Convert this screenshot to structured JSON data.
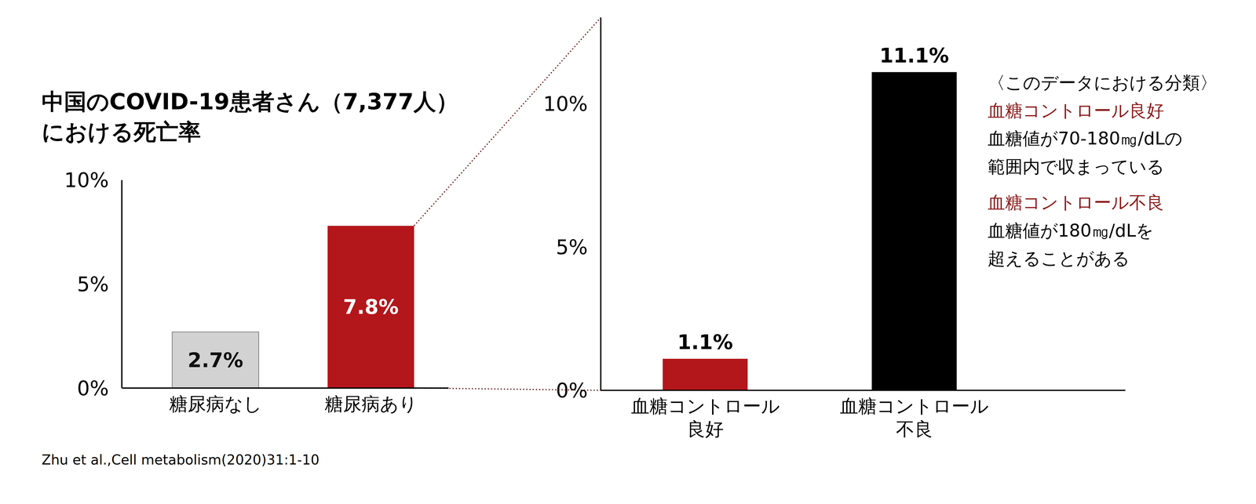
{
  "chart_data": [
    {
      "type": "bar",
      "title": "中国のCOVID-19患者さん（7,377人）\nにおける死亡率",
      "categories": [
        "糖尿病なし",
        "糖尿病あり"
      ],
      "values": [
        2.7,
        7.8
      ],
      "value_labels": [
        "2.7%",
        "7.8%"
      ],
      "colors": [
        "#d2d2d2",
        "#b3161b"
      ],
      "ylim": [
        0,
        10
      ],
      "yticks": [
        {
          "value": 0,
          "label": "0%"
        },
        {
          "value": 5,
          "label": "5%"
        },
        {
          "value": 10,
          "label": "10%"
        }
      ],
      "grid": false,
      "data_labels": true,
      "annotations": [
        "Zhu et al.,Cell metabolism(2020)31:1-10"
      ]
    },
    {
      "type": "bar",
      "categories": [
        "血糖コントロール\n良好",
        "血糖コントロール\n不良"
      ],
      "values": [
        1.1,
        11.1
      ],
      "value_labels": [
        "1.1%",
        "11.1%"
      ],
      "colors": [
        "#b3161b",
        "#000000"
      ],
      "ylim": [
        0,
        13
      ],
      "yticks": [
        {
          "value": 0,
          "label": "0%"
        },
        {
          "value": 5,
          "label": "5%"
        },
        {
          "value": 10,
          "label": "10%"
        }
      ],
      "grid": false,
      "data_labels": true,
      "annotations": [
        "〈このデータにおける分類〉",
        "血糖コントロール良好",
        "血糖値が70-180㎎/dLの\n範囲内で収まっている",
        "血糖コントロール不良",
        "血糖値が180㎎/dLを\n超えることがある"
      ]
    }
  ]
}
